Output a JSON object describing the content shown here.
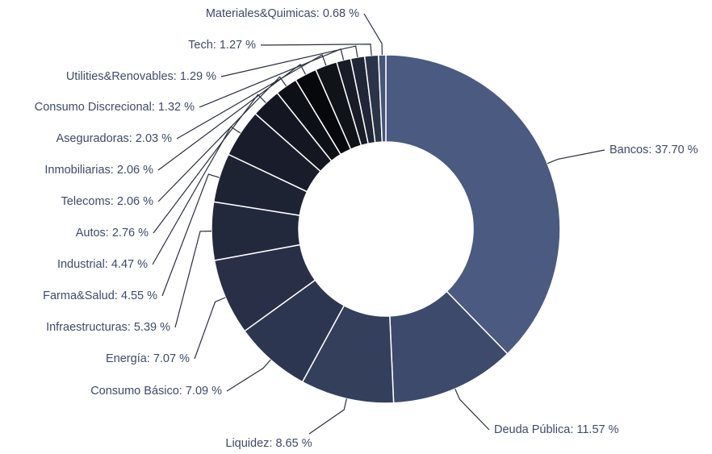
{
  "chart_data": {
    "type": "pie",
    "donut": true,
    "values": [
      37.7,
      11.57,
      8.65,
      7.09,
      7.07,
      5.39,
      4.55,
      4.47,
      2.76,
      2.06,
      2.06,
      2.03,
      1.32,
      1.29,
      1.27,
      0.68
    ],
    "value_labels": [
      "Bancos: 37.70 %",
      "Deuda Pública: 11.57 %",
      "Liquidez: 8.65 %",
      "Consumo Básico: 7.09 %",
      "Energía: 7.07 %",
      "Infraestructuras: 5.39 %",
      "Farma&Salud: 4.55 %",
      "Industrial: 4.47 %",
      "Autos: 2.76 %",
      "Telecoms: 2.06 %",
      "Inmobiliarias: 2.06 %",
      "Aseguradoras: 2.03 %",
      "Consumo Discrecional: 1.32 %",
      "Utilities&Renovables: 1.29 %",
      "Tech: 1.27 %",
      "Materiales&Quimicas: 0.68 %"
    ],
    "colors": [
      "#4a5a80",
      "#3d4a6b",
      "#343f5c",
      "#2d3651",
      "#282f47",
      "#23293d",
      "#1e2334",
      "#191d2b",
      "#141721",
      "#0e1018",
      "#07080c",
      "#101318",
      "#181c27",
      "#202636",
      "#2c3448",
      "#46557a"
    ]
  }
}
